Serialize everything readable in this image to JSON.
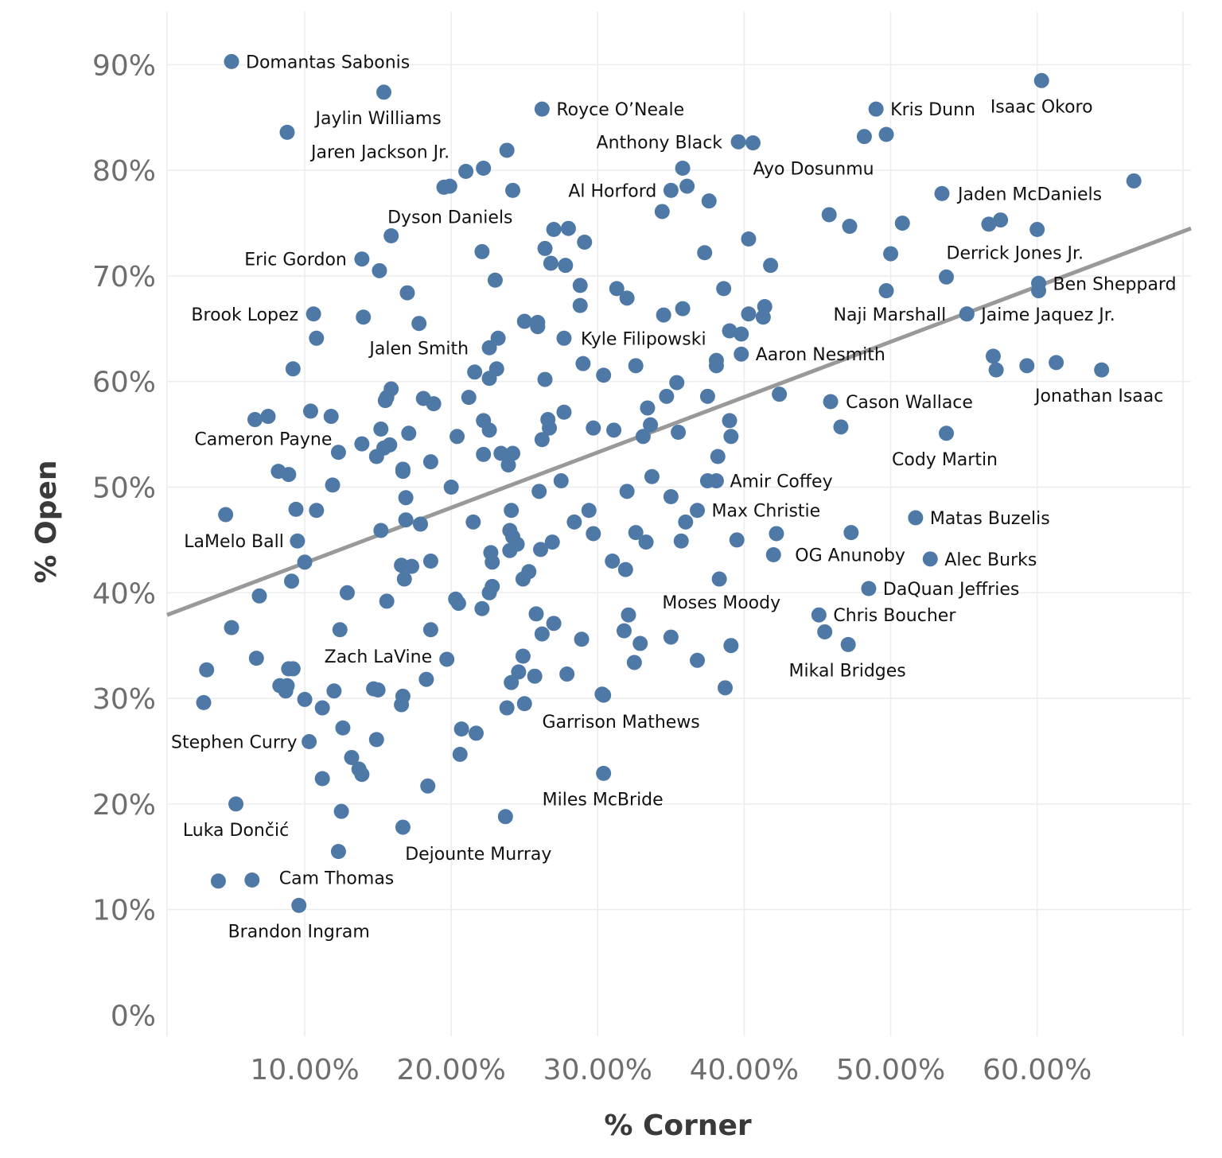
{
  "chart_data": {
    "type": "scatter",
    "xlabel": "% Corner",
    "ylabel": "% Open",
    "x_ticks": [
      "10.00%",
      "20.00%",
      "30.00%",
      "40.00%",
      "50.00%",
      "60.00%"
    ],
    "y_ticks": [
      "0%",
      "10%",
      "20%",
      "30%",
      "40%",
      "50%",
      "60%",
      "70%",
      "80%",
      "90%"
    ],
    "xlim": [
      0.6,
      70.5
    ],
    "ylim": [
      -2,
      95
    ],
    "grid": true,
    "trend_line": {
      "x": [
        0.6,
        70.5
      ],
      "y": [
        37.9,
        74.5
      ]
    },
    "colors": {
      "point": "#4e79a7",
      "trend": "#999999"
    },
    "labeled_points": [
      {
        "label": "Domantas Sabonis",
        "x": 5.0,
        "y": 90.3
      },
      {
        "label": "Jaylin Williams",
        "x": 15.4,
        "y": 87.4
      },
      {
        "label": "Jaren Jackson Jr.",
        "x": 8.8,
        "y": 83.6
      },
      {
        "label": "Royce O’Neale",
        "x": 26.2,
        "y": 85.8
      },
      {
        "label": "Anthony Black",
        "x": 39.6,
        "y": 82.7
      },
      {
        "label": "Ayo Dosunmu",
        "x": 40.6,
        "y": 82.6
      },
      {
        "label": "Kris Dunn",
        "x": 49.0,
        "y": 85.8
      },
      {
        "label": "Isaac Okoro",
        "x": 60.3,
        "y": 88.5
      },
      {
        "label": "Al Horford",
        "x": 35.0,
        "y": 78.1
      },
      {
        "label": "Dyson Daniels",
        "x": 24.2,
        "y": 78.1
      },
      {
        "label": "Jaden McDaniels",
        "x": 53.5,
        "y": 77.8
      },
      {
        "label": "Derrick Jones Jr.",
        "x": 53.8,
        "y": 69.9
      },
      {
        "label": "Eric Gordon",
        "x": 13.9,
        "y": 71.6
      },
      {
        "label": "Ben Sheppard",
        "x": 60.1,
        "y": 69.3
      },
      {
        "label": "Brook Lopez",
        "x": 10.6,
        "y": 66.4
      },
      {
        "label": "Naji Marshall",
        "x": 55.2,
        "y": 66.4
      },
      {
        "label": "Jaime Jaquez Jr.",
        "x": 55.2,
        "y": 66.4
      },
      {
        "label": "Jalen Smith",
        "x": 22.6,
        "y": 63.2
      },
      {
        "label": "Kyle Filipowski",
        "x": 27.7,
        "y": 64.1
      },
      {
        "label": "Aaron Nesmith",
        "x": 39.8,
        "y": 62.6
      },
      {
        "label": "Jonathan Isaac",
        "x": 64.4,
        "y": 61.1
      },
      {
        "label": "Cason Wallace",
        "x": 45.9,
        "y": 58.1
      },
      {
        "label": "Cameron Payne",
        "x": 12.3,
        "y": 53.3
      },
      {
        "label": "Cody Martin",
        "x": 53.8,
        "y": 55.1
      },
      {
        "label": "Amir Coffey",
        "x": 38.1,
        "y": 50.6
      },
      {
        "label": "Max Christie",
        "x": 36.8,
        "y": 47.8
      },
      {
        "label": "Matas Buzelis",
        "x": 51.7,
        "y": 47.1
      },
      {
        "label": "LaMelo Ball",
        "x": 9.5,
        "y": 44.9
      },
      {
        "label": "OG Anunoby",
        "x": 42.0,
        "y": 43.6
      },
      {
        "label": "Alec Burks",
        "x": 52.7,
        "y": 43.2
      },
      {
        "label": "DaQuan Jeffries",
        "x": 48.5,
        "y": 40.4
      },
      {
        "label": "Moses Moody",
        "x": 38.3,
        "y": 41.3
      },
      {
        "label": "Chris Boucher",
        "x": 45.1,
        "y": 37.9
      },
      {
        "label": "Zach LaVine",
        "x": 18.6,
        "y": 36.5
      },
      {
        "label": "Mikal Bridges",
        "x": 47.1,
        "y": 35.1
      },
      {
        "label": "Garrison Mathews",
        "x": 30.4,
        "y": 30.3
      },
      {
        "label": "Stephen Curry",
        "x": 10.3,
        "y": 25.9
      },
      {
        "label": "Miles McBride",
        "x": 30.4,
        "y": 22.9
      },
      {
        "label": "Luka Dončić",
        "x": 5.3,
        "y": 20.0
      },
      {
        "label": "Dejounte Murray",
        "x": 23.7,
        "y": 18.8
      },
      {
        "label": "Cam Thomas",
        "x": 6.4,
        "y": 12.8
      },
      {
        "label": "Brandon Ingram",
        "x": 9.6,
        "y": 10.4
      }
    ],
    "unlabeled_points": [
      [
        4.1,
        12.7
      ],
      [
        12.3,
        15.5
      ],
      [
        12.5,
        19.3
      ],
      [
        16.7,
        17.8
      ],
      [
        18.4,
        21.7
      ],
      [
        11.2,
        22.4
      ],
      [
        13.9,
        22.8
      ],
      [
        13.7,
        23.3
      ],
      [
        13.2,
        24.4
      ],
      [
        20.6,
        24.7
      ],
      [
        14.9,
        26.1
      ],
      [
        21.7,
        26.7
      ],
      [
        20.7,
        27.1
      ],
      [
        12.6,
        27.2
      ],
      [
        3.1,
        29.6
      ],
      [
        10.0,
        29.9
      ],
      [
        11.2,
        29.1
      ],
      [
        16.6,
        29.4
      ],
      [
        16.7,
        30.2
      ],
      [
        12.0,
        30.7
      ],
      [
        8.7,
        30.7
      ],
      [
        14.7,
        30.9
      ],
      [
        15.0,
        30.8
      ],
      [
        8.3,
        31.2
      ],
      [
        8.8,
        31.2
      ],
      [
        23.8,
        29.1
      ],
      [
        25.0,
        29.5
      ],
      [
        24.1,
        31.5
      ],
      [
        24.6,
        32.5
      ],
      [
        25.7,
        32.1
      ],
      [
        27.9,
        32.3
      ],
      [
        30.3,
        30.4
      ],
      [
        36.8,
        33.6
      ],
      [
        38.7,
        31.0
      ],
      [
        3.3,
        32.7
      ],
      [
        8.9,
        32.8
      ],
      [
        9.2,
        32.8
      ],
      [
        6.7,
        33.8
      ],
      [
        19.7,
        33.7
      ],
      [
        18.3,
        31.8
      ],
      [
        24.9,
        34.0
      ],
      [
        28.9,
        35.6
      ],
      [
        32.5,
        33.4
      ],
      [
        32.9,
        35.2
      ],
      [
        35.0,
        35.8
      ],
      [
        39.1,
        35.0
      ],
      [
        45.5,
        36.3
      ],
      [
        5.0,
        36.7
      ],
      [
        12.4,
        36.5
      ],
      [
        26.2,
        36.1
      ],
      [
        27.0,
        37.1
      ],
      [
        25.8,
        38.0
      ],
      [
        32.1,
        37.9
      ],
      [
        31.8,
        36.4
      ],
      [
        22.1,
        38.5
      ],
      [
        20.3,
        39.4
      ],
      [
        20.5,
        39.0
      ],
      [
        15.6,
        39.2
      ],
      [
        6.9,
        39.7
      ],
      [
        12.9,
        40.0
      ],
      [
        9.1,
        41.1
      ],
      [
        16.8,
        41.3
      ],
      [
        17.3,
        42.5
      ],
      [
        16.6,
        42.6
      ],
      [
        18.6,
        43.0
      ],
      [
        22.6,
        40.0
      ],
      [
        22.8,
        40.6
      ],
      [
        22.8,
        42.9
      ],
      [
        22.7,
        43.8
      ],
      [
        24.9,
        41.3
      ],
      [
        25.3,
        42.0
      ],
      [
        26.1,
        44.1
      ],
      [
        26.9,
        44.8
      ],
      [
        24.0,
        44.0
      ],
      [
        24.5,
        44.6
      ],
      [
        24.2,
        45.3
      ],
      [
        24.0,
        45.9
      ],
      [
        29.7,
        45.6
      ],
      [
        31.0,
        43.0
      ],
      [
        31.9,
        42.2
      ],
      [
        32.6,
        45.7
      ],
      [
        33.3,
        44.8
      ],
      [
        35.7,
        44.9
      ],
      [
        39.5,
        45.0
      ],
      [
        10.0,
        42.9
      ],
      [
        4.6,
        47.4
      ],
      [
        9.4,
        47.9
      ],
      [
        10.8,
        47.8
      ],
      [
        15.2,
        45.9
      ],
      [
        16.9,
        46.9
      ],
      [
        17.9,
        46.5
      ],
      [
        21.5,
        46.7
      ],
      [
        24.1,
        47.8
      ],
      [
        28.4,
        46.7
      ],
      [
        29.4,
        47.8
      ],
      [
        36.0,
        46.7
      ],
      [
        42.2,
        45.6
      ],
      [
        47.3,
        45.7
      ],
      [
        16.9,
        49.0
      ],
      [
        20.0,
        50.0
      ],
      [
        26.0,
        49.6
      ],
      [
        27.5,
        50.6
      ],
      [
        32.0,
        49.6
      ],
      [
        33.7,
        51.0
      ],
      [
        35.0,
        49.1
      ],
      [
        37.5,
        50.6
      ],
      [
        11.9,
        50.2
      ],
      [
        8.2,
        51.5
      ],
      [
        8.9,
        51.2
      ],
      [
        16.7,
        51.5
      ],
      [
        16.7,
        51.7
      ],
      [
        18.6,
        52.4
      ],
      [
        23.9,
        52.1
      ],
      [
        23.4,
        53.2
      ],
      [
        24.2,
        53.2
      ],
      [
        22.2,
        53.1
      ],
      [
        22.2,
        56.3
      ],
      [
        22.6,
        55.4
      ],
      [
        20.4,
        54.8
      ],
      [
        15.8,
        54.0
      ],
      [
        15.4,
        53.7
      ],
      [
        14.9,
        52.9
      ],
      [
        15.2,
        55.5
      ],
      [
        13.9,
        54.1
      ],
      [
        17.1,
        55.1
      ],
      [
        26.2,
        54.5
      ],
      [
        26.7,
        55.6
      ],
      [
        26.6,
        56.4
      ],
      [
        27.7,
        57.1
      ],
      [
        29.7,
        55.6
      ],
      [
        31.1,
        55.4
      ],
      [
        33.1,
        54.8
      ],
      [
        33.6,
        55.9
      ],
      [
        35.5,
        55.2
      ],
      [
        38.2,
        52.9
      ],
      [
        39.1,
        54.8
      ],
      [
        39.0,
        56.3
      ],
      [
        46.6,
        55.7
      ],
      [
        6.6,
        56.4
      ],
      [
        7.5,
        56.7
      ],
      [
        10.4,
        57.2
      ],
      [
        11.8,
        56.7
      ],
      [
        15.5,
        58.2
      ],
      [
        15.6,
        58.5
      ],
      [
        15.9,
        59.3
      ],
      [
        18.1,
        58.4
      ],
      [
        18.8,
        57.9
      ],
      [
        21.2,
        58.5
      ],
      [
        21.6,
        60.9
      ],
      [
        22.6,
        60.3
      ],
      [
        23.1,
        61.2
      ],
      [
        26.4,
        60.2
      ],
      [
        29.0,
        61.7
      ],
      [
        30.4,
        60.6
      ],
      [
        32.6,
        61.5
      ],
      [
        33.4,
        57.5
      ],
      [
        34.7,
        58.6
      ],
      [
        35.4,
        59.9
      ],
      [
        37.5,
        58.6
      ],
      [
        38.1,
        61.5
      ],
      [
        38.1,
        62.0
      ],
      [
        42.4,
        58.8
      ],
      [
        57.0,
        62.4
      ],
      [
        57.2,
        61.1
      ],
      [
        59.3,
        61.5
      ],
      [
        61.3,
        61.8
      ],
      [
        9.2,
        61.2
      ],
      [
        10.8,
        64.1
      ],
      [
        14.0,
        66.1
      ],
      [
        17.8,
        65.5
      ],
      [
        23.2,
        64.1
      ],
      [
        25.0,
        65.7
      ],
      [
        25.9,
        65.2
      ],
      [
        25.9,
        65.6
      ],
      [
        28.8,
        67.2
      ],
      [
        28.8,
        69.1
      ],
      [
        31.3,
        68.8
      ],
      [
        32.0,
        67.9
      ],
      [
        34.5,
        66.3
      ],
      [
        35.8,
        66.9
      ],
      [
        39.0,
        64.8
      ],
      [
        39.8,
        64.5
      ],
      [
        40.3,
        66.4
      ],
      [
        41.3,
        66.1
      ],
      [
        41.4,
        67.1
      ],
      [
        49.7,
        68.6
      ],
      [
        60.1,
        68.6
      ],
      [
        15.1,
        70.5
      ],
      [
        17.0,
        68.4
      ],
      [
        23.0,
        69.6
      ],
      [
        26.4,
        72.6
      ],
      [
        26.8,
        71.2
      ],
      [
        27.8,
        71.0
      ],
      [
        22.1,
        72.3
      ],
      [
        15.9,
        73.8
      ],
      [
        27.0,
        74.4
      ],
      [
        28.0,
        74.5
      ],
      [
        29.1,
        73.2
      ],
      [
        37.3,
        72.2
      ],
      [
        38.6,
        68.8
      ],
      [
        40.3,
        73.5
      ],
      [
        41.8,
        71.0
      ],
      [
        50.0,
        72.1
      ],
      [
        45.8,
        75.8
      ],
      [
        47.2,
        74.7
      ],
      [
        50.8,
        75.0
      ],
      [
        56.7,
        74.9
      ],
      [
        57.5,
        75.3
      ],
      [
        60.0,
        74.4
      ],
      [
        66.6,
        79.0
      ],
      [
        34.4,
        76.1
      ],
      [
        37.6,
        77.1
      ],
      [
        36.1,
        78.5
      ],
      [
        35.8,
        80.2
      ],
      [
        19.5,
        78.4
      ],
      [
        19.9,
        78.5
      ],
      [
        21.0,
        79.9
      ],
      [
        22.2,
        80.2
      ],
      [
        23.8,
        81.9
      ],
      [
        48.2,
        83.2
      ],
      [
        49.7,
        83.4
      ]
    ]
  }
}
